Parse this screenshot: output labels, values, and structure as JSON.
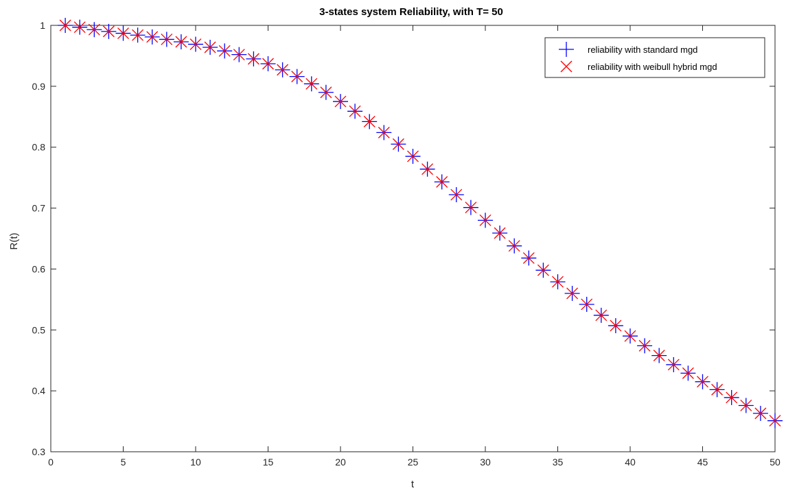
{
  "chart_data": {
    "type": "scatter",
    "title": "3-states system Reliability, with T= 50",
    "xlabel": "t",
    "ylabel": "R(t)",
    "xlim": [
      0,
      50
    ],
    "ylim": [
      0.3,
      1.0
    ],
    "xticks": [
      "0",
      "5",
      "10",
      "15",
      "20",
      "25",
      "30",
      "35",
      "40",
      "45",
      "50"
    ],
    "yticks": [
      "0.3",
      "0.4",
      "0.5",
      "0.6",
      "0.7",
      "0.8",
      "0.9",
      "1"
    ],
    "grid": false,
    "legend_position": "top-right",
    "x": [
      1,
      2,
      3,
      4,
      5,
      6,
      7,
      8,
      9,
      10,
      11,
      12,
      13,
      14,
      15,
      16,
      17,
      18,
      19,
      20,
      21,
      22,
      23,
      24,
      25,
      26,
      27,
      28,
      29,
      30,
      31,
      32,
      33,
      34,
      35,
      36,
      37,
      38,
      39,
      40,
      41,
      42,
      43,
      44,
      45,
      46,
      47,
      48,
      49,
      50
    ],
    "series": [
      {
        "name": "reliability with standard mgd",
        "marker": "plus",
        "color": "#0000ff",
        "values": [
          1.0,
          0.997,
          0.993,
          0.99,
          0.987,
          0.984,
          0.981,
          0.977,
          0.973,
          0.969,
          0.964,
          0.958,
          0.952,
          0.945,
          0.937,
          0.927,
          0.916,
          0.904,
          0.89,
          0.875,
          0.859,
          0.842,
          0.824,
          0.805,
          0.785,
          0.764,
          0.743,
          0.722,
          0.701,
          0.68,
          0.659,
          0.638,
          0.618,
          0.598,
          0.579,
          0.56,
          0.542,
          0.524,
          0.507,
          0.49,
          0.474,
          0.458,
          0.443,
          0.429,
          0.415,
          0.402,
          0.389,
          0.376,
          0.363,
          0.351
        ]
      },
      {
        "name": "reliability with weibull hybrid mgd",
        "marker": "x",
        "color": "#ff0000",
        "values": [
          1.0,
          0.997,
          0.993,
          0.99,
          0.987,
          0.984,
          0.981,
          0.977,
          0.973,
          0.969,
          0.964,
          0.958,
          0.952,
          0.945,
          0.937,
          0.927,
          0.916,
          0.904,
          0.89,
          0.875,
          0.859,
          0.842,
          0.824,
          0.805,
          0.785,
          0.764,
          0.743,
          0.722,
          0.701,
          0.68,
          0.659,
          0.638,
          0.618,
          0.598,
          0.579,
          0.56,
          0.542,
          0.524,
          0.507,
          0.49,
          0.474,
          0.458,
          0.443,
          0.429,
          0.415,
          0.402,
          0.389,
          0.376,
          0.363,
          0.351
        ]
      }
    ]
  }
}
